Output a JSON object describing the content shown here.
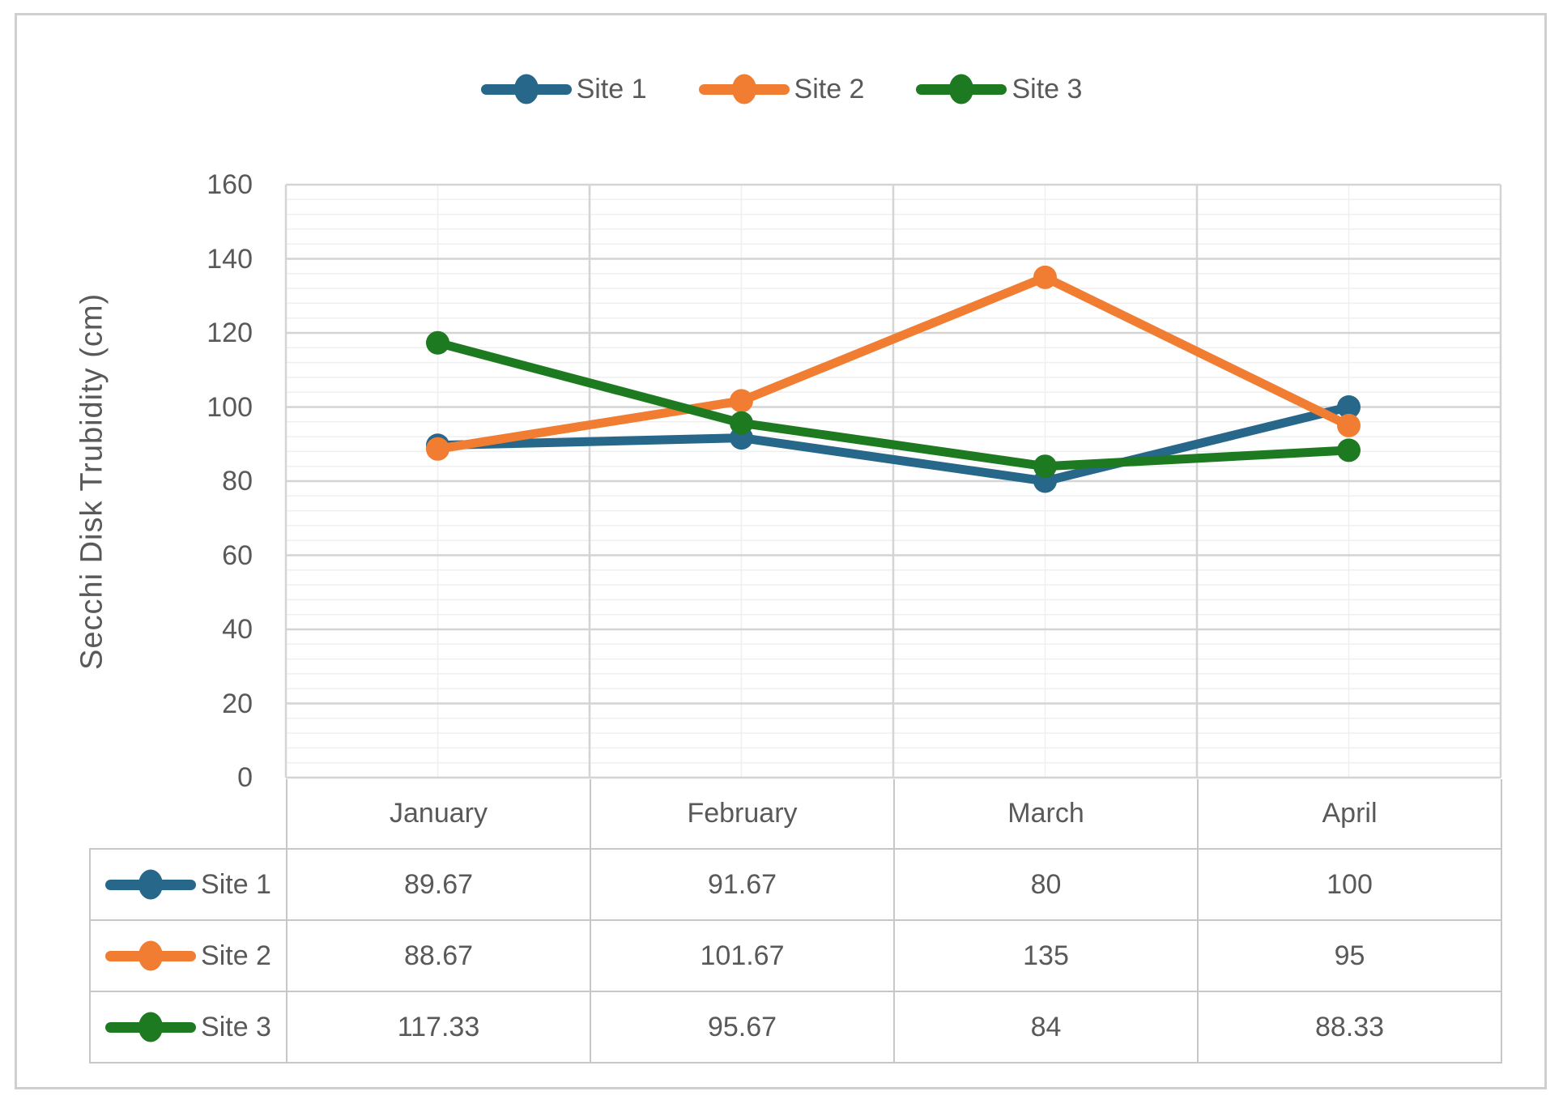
{
  "page": {
    "background_color": "#ffffff",
    "card_border_color": "#cfcfcf",
    "text_color": "#595959"
  },
  "chart_data": {
    "type": "line",
    "title": "",
    "xlabel": "",
    "ylabel": "Secchi Disk Trubidity (cm)",
    "categories": [
      "January",
      "February",
      "March",
      "April"
    ],
    "series": [
      {
        "name": "Site 1",
        "color": "#26678A",
        "values": [
          89.67,
          91.67,
          80,
          100
        ]
      },
      {
        "name": "Site 2",
        "color": "#F07D32",
        "values": [
          88.67,
          101.67,
          135,
          95
        ]
      },
      {
        "name": "Site 3",
        "color": "#1E7A20",
        "values": [
          117.33,
          95.67,
          84,
          88.33
        ]
      }
    ],
    "ylim": [
      0,
      160
    ],
    "y_major_unit": 20,
    "y_minor_unit": 4,
    "y_tick_labels": [
      "0",
      "20",
      "40",
      "60",
      "80",
      "100",
      "120",
      "140",
      "160"
    ],
    "grid": {
      "horizontal_major": true,
      "horizontal_minor": true,
      "vertical_major": true,
      "vertical_minor": true,
      "major_color": "#d4d4d4",
      "minor_color": "#efefef"
    },
    "legend_position": "top",
    "legend_items": [
      "Site 1",
      "Site 2",
      "Site 3"
    ],
    "data_table_shown": true,
    "data_table": {
      "row_labels": [
        "Site 1",
        "Site 2",
        "Site 3"
      ],
      "column_labels": [
        "January",
        "February",
        "March",
        "April"
      ],
      "rows": [
        [
          "89.67",
          "91.67",
          "80",
          "100"
        ],
        [
          "88.67",
          "101.67",
          "135",
          "95"
        ],
        [
          "117.33",
          "95.67",
          "84",
          "88.33"
        ]
      ]
    }
  }
}
